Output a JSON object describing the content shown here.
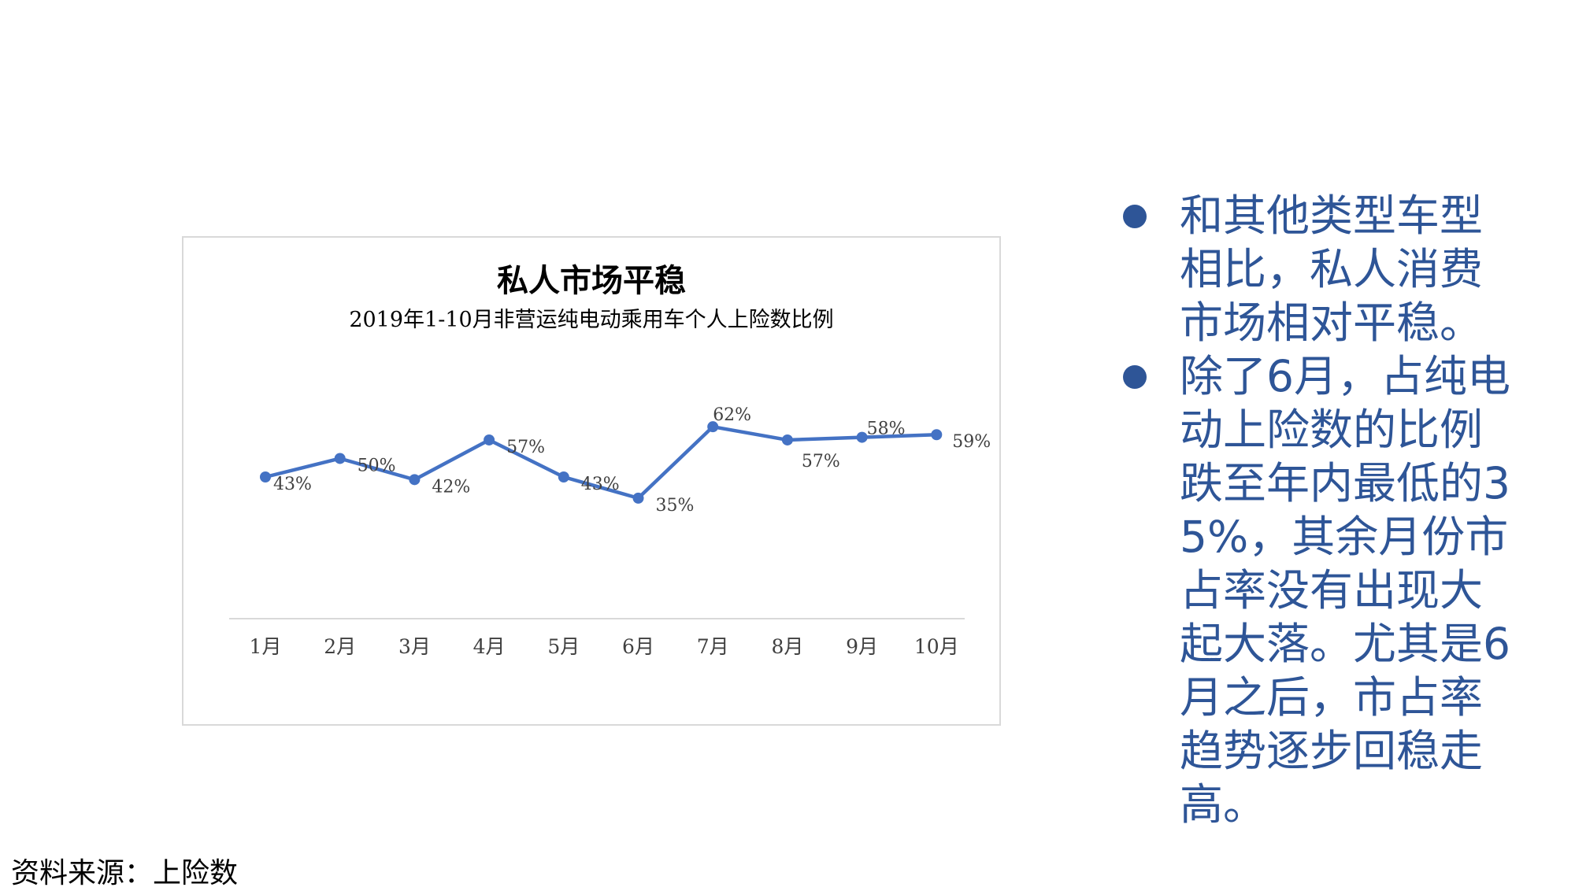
{
  "chart_data": {
    "type": "line",
    "title": "私人市场平稳",
    "subtitle": "2019年1-10月非营运纯电动乘用车个人上险数比例",
    "categories": [
      "1月",
      "2月",
      "3月",
      "4月",
      "5月",
      "6月",
      "7月",
      "8月",
      "9月",
      "10月"
    ],
    "series": [
      {
        "values": [
          43,
          50,
          42,
          57,
          43,
          35,
          62,
          57,
          58,
          59
        ],
        "labels": [
          "43%",
          "50%",
          "42%",
          "57%",
          "43%",
          "35%",
          "62%",
          "57%",
          "58%",
          "59%"
        ],
        "color": "#4472c4"
      }
    ],
    "ylim": [
      0,
      100
    ],
    "grid": false,
    "legend": "none"
  },
  "bullets": [
    "和其他类型车型相比，私人消费市场相对平稳。",
    "除了6月，占纯电动上险数的比例跌至年内最低的35%，其余月份市占率没有出现大起大落。尤其是6月之后，市占率趋势逐步回稳走高。"
  ],
  "source": "资料来源：上险数",
  "colors": {
    "accent": "#2e5597",
    "line": "#4472c4",
    "axis": "#d9d9d9"
  }
}
